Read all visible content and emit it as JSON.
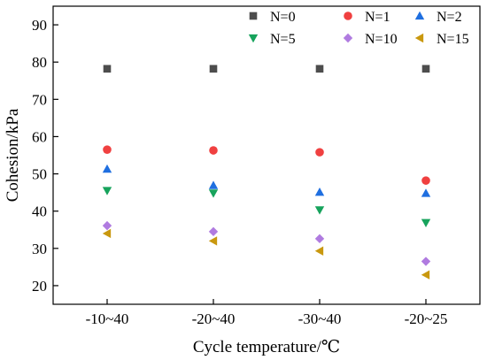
{
  "chart_data": {
    "type": "scatter",
    "title": "",
    "xlabel": "Cycle temperature/℃",
    "ylabel": "Cohesion/kPa",
    "categories": [
      "-10~40",
      "-20~40",
      "-30~40",
      "-20~25"
    ],
    "ylim": [
      15,
      95
    ],
    "yticks": [
      20,
      30,
      40,
      50,
      60,
      70,
      80,
      90
    ],
    "grid": false,
    "legend_position": "top-right",
    "series": [
      {
        "name": "N=0",
        "marker": "square",
        "color": "#4d4d4d",
        "values": [
          78.2,
          78.2,
          78.2,
          78.2
        ]
      },
      {
        "name": "N=1",
        "marker": "circle",
        "color": "#f04040",
        "values": [
          56.5,
          56.3,
          55.8,
          48.2
        ]
      },
      {
        "name": "N=2",
        "marker": "triangle-up",
        "color": "#1f6fe0",
        "values": [
          51.3,
          46.9,
          45.1,
          44.8
        ]
      },
      {
        "name": "N=5",
        "marker": "triangle-down",
        "color": "#17a35c",
        "values": [
          45.5,
          44.8,
          40.3,
          36.9
        ]
      },
      {
        "name": "N=10",
        "marker": "diamond",
        "color": "#b07be0",
        "values": [
          36.1,
          34.5,
          32.6,
          26.5
        ]
      },
      {
        "name": "N=15",
        "marker": "triangle-left",
        "color": "#c9980f",
        "values": [
          34.0,
          32.0,
          29.3,
          22.9
        ]
      }
    ]
  }
}
